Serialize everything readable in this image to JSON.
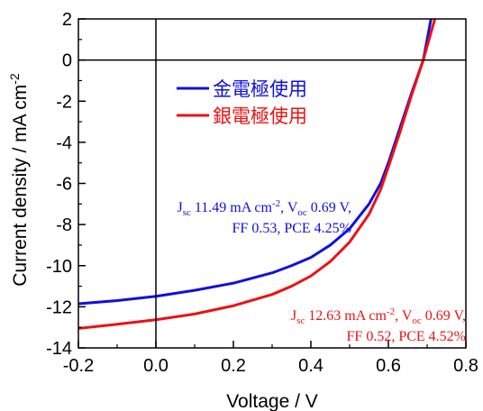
{
  "chart_data": {
    "type": "line",
    "xlabel": "Voltage / V",
    "ylabel": {
      "main": "Current density / mA cm",
      "sup": "-2"
    },
    "xlim": [
      -0.2,
      0.8
    ],
    "ylim": [
      -14,
      2
    ],
    "xticks": [
      -0.2,
      0.0,
      0.2,
      0.4,
      0.6,
      0.8
    ],
    "xtick_labels": [
      "-0.2",
      "0.0",
      "0.2",
      "0.4",
      "0.6",
      "0.8"
    ],
    "yticks": [
      -14,
      -12,
      -10,
      -8,
      -6,
      -4,
      -2,
      0,
      2
    ],
    "ytick_labels": [
      "-14",
      "-12",
      "-10",
      "-8",
      "-6",
      "-4",
      "-2",
      "0",
      "2"
    ],
    "grid": false,
    "legend_position": "top-center",
    "series": [
      {
        "name": "金電極使用",
        "color": "#1010e0",
        "x": [
          -0.2,
          -0.1,
          0.0,
          0.1,
          0.2,
          0.3,
          0.35,
          0.4,
          0.45,
          0.5,
          0.55,
          0.58,
          0.6,
          0.63,
          0.66,
          0.69,
          0.71
        ],
        "y": [
          -11.85,
          -11.7,
          -11.49,
          -11.2,
          -10.85,
          -10.35,
          -10.0,
          -9.6,
          -9.0,
          -8.2,
          -7.0,
          -6.0,
          -5.0,
          -3.3,
          -1.6,
          0.0,
          2.0
        ]
      },
      {
        "name": "銀電極使用",
        "color": "#ee1111",
        "x": [
          -0.2,
          -0.1,
          0.0,
          0.1,
          0.2,
          0.3,
          0.35,
          0.4,
          0.45,
          0.5,
          0.55,
          0.58,
          0.6,
          0.63,
          0.66,
          0.69,
          0.72
        ],
        "y": [
          -13.05,
          -12.85,
          -12.63,
          -12.35,
          -11.95,
          -11.4,
          -11.0,
          -10.5,
          -9.8,
          -8.85,
          -7.5,
          -6.3,
          -5.2,
          -3.5,
          -1.7,
          0.0,
          2.0
        ]
      }
    ],
    "annotations": [
      {
        "color": "#1010e0",
        "lines": [
          [
            {
              "t": "J"
            },
            {
              "t": "sc",
              "s": "sub"
            },
            {
              "t": " 11.49 mA cm"
            },
            {
              "t": "-2",
              "s": "sup"
            },
            {
              "t": ", V"
            },
            {
              "t": "oc",
              "s": "sub"
            },
            {
              "t": " 0.69 V,"
            }
          ],
          [
            {
              "t": "FF 0.53, PCE 4.25%"
            }
          ]
        ]
      },
      {
        "color": "#ee1111",
        "lines": [
          [
            {
              "t": "J"
            },
            {
              "t": "sc",
              "s": "sub"
            },
            {
              "t": " 12.63 mA cm"
            },
            {
              "t": "-2",
              "s": "sup"
            },
            {
              "t": ", V"
            },
            {
              "t": "oc",
              "s": "sub"
            },
            {
              "t": " 0.69 V,"
            }
          ],
          [
            {
              "t": "FF 0.52, PCE 4.52%"
            }
          ]
        ]
      }
    ]
  }
}
